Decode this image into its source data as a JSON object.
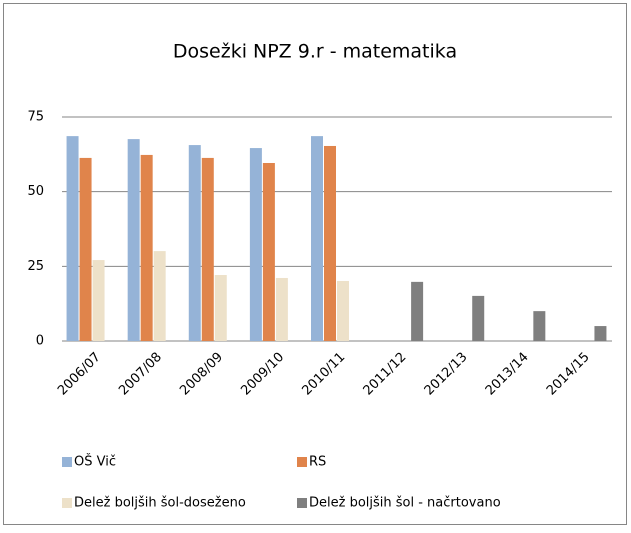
{
  "chart_data": {
    "type": "bar",
    "title": "Dosežki NPZ 9.r  - matematika",
    "categories": [
      "2006/07",
      "2007/08",
      "2008/09",
      "2009/10",
      "2010/11",
      "2011/12",
      "2012/13",
      "2013/14",
      "2014/15"
    ],
    "series": [
      {
        "name": "OŠ Vič",
        "color": "#95b3d7",
        "values": [
          68.6,
          67.6,
          65.6,
          64.6,
          68.6,
          null,
          null,
          null,
          null
        ]
      },
      {
        "name": "RS",
        "color": "#e0844b",
        "values": [
          61.3,
          62.3,
          61.3,
          59.6,
          65.3,
          null,
          null,
          null,
          null
        ]
      },
      {
        "name": "Delež boljših šol-doseženo",
        "color": "#ede1c9",
        "values": [
          27.1,
          30.1,
          22.1,
          21.1,
          20.1,
          null,
          null,
          null,
          null
        ]
      },
      {
        "name": "Delež boljših šol - načrtovano",
        "color": "#7f7f7f",
        "values": [
          null,
          null,
          null,
          null,
          null,
          19.8,
          15.1,
          10,
          5
        ]
      }
    ],
    "ylim": [
      0,
      75
    ],
    "yticks": [
      0,
      25,
      50,
      75
    ],
    "grid": true,
    "legend": "bottom"
  }
}
